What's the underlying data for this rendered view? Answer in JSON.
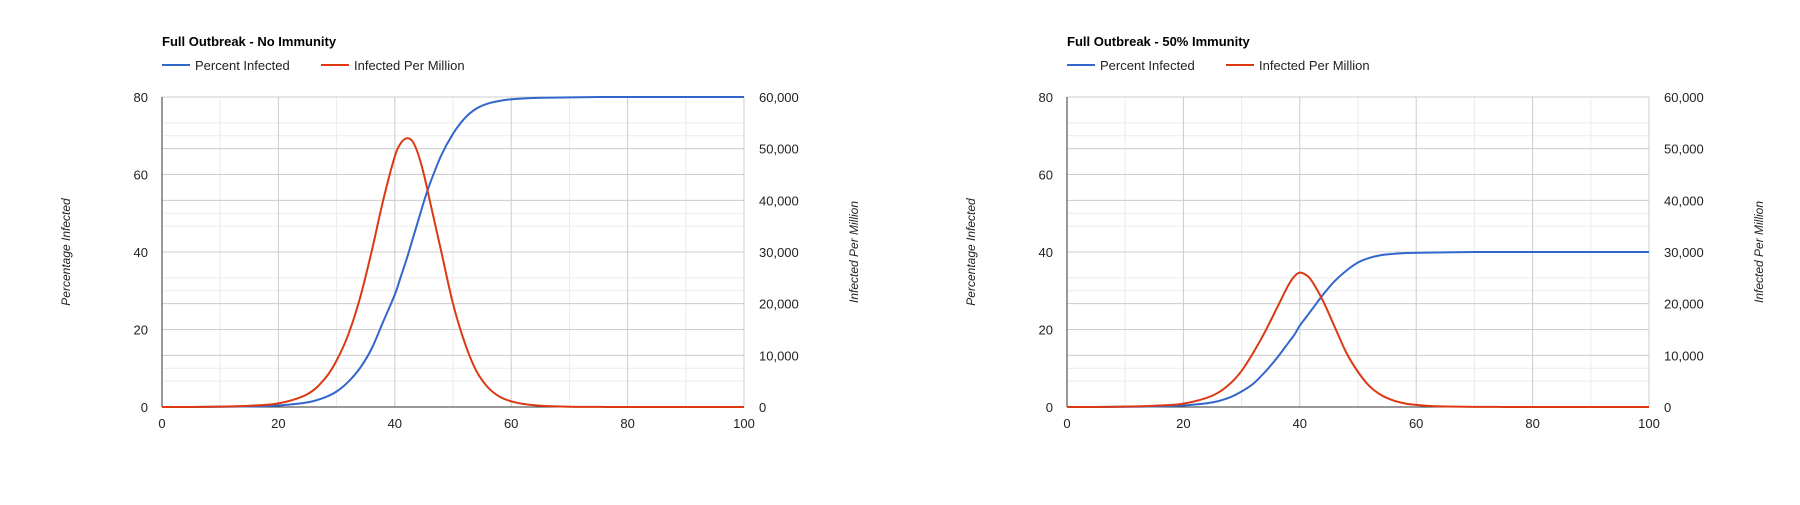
{
  "chart_data": [
    {
      "type": "line",
      "title": "Full Outbreak - No Immunity",
      "xlabel": "",
      "ylabel": "Percentage Infected",
      "y2label": "Infected Per Million",
      "xlim": [
        0,
        100
      ],
      "ylim": [
        0,
        80
      ],
      "y2lim": [
        0,
        60000
      ],
      "x_ticks": [
        "0",
        "20",
        "40",
        "60",
        "80",
        "100"
      ],
      "y_ticks": [
        "0",
        "20",
        "40",
        "60",
        "80"
      ],
      "y2_ticks": [
        "0",
        "10,000",
        "20,000",
        "30,000",
        "40,000",
        "50,000",
        "60,000"
      ],
      "grid": true,
      "legend_position": "top-left",
      "x": [
        0,
        5,
        10,
        15,
        20,
        25,
        28,
        30,
        32,
        34,
        36,
        38,
        40,
        41,
        42,
        43,
        44,
        45,
        46,
        48,
        50,
        52,
        54,
        56,
        58,
        60,
        62,
        65,
        70,
        75,
        80,
        90,
        100
      ],
      "series": [
        {
          "name": "Percent Infected",
          "axis": "left",
          "color": "#3366cc",
          "values": [
            0,
            0,
            0.05,
            0.15,
            0.4,
            1.2,
            2.5,
            4,
            6.5,
            10,
            15,
            22,
            29,
            33.5,
            38,
            43,
            48,
            53,
            57.5,
            65,
            70.5,
            74.5,
            77,
            78.3,
            79,
            79.4,
            79.6,
            79.8,
            79.9,
            80,
            80,
            80,
            80
          ]
        },
        {
          "name": "Infected Per Million",
          "axis": "right",
          "color": "#dc3912",
          "values": [
            0,
            0,
            80,
            250,
            700,
            2500,
            5500,
            9000,
            14000,
            21000,
            30000,
            40000,
            48500,
            51000,
            52000,
            51500,
            49000,
            45000,
            40000,
            30000,
            20000,
            12500,
            7000,
            3800,
            2000,
            1100,
            600,
            250,
            60,
            15,
            5,
            0,
            0
          ]
        }
      ]
    },
    {
      "type": "line",
      "title": "Full Outbreak - 50% Immunity",
      "xlabel": "",
      "ylabel": "Percentage Infected",
      "y2label": "Infected Per Million",
      "xlim": [
        0,
        100
      ],
      "ylim": [
        0,
        80
      ],
      "y2lim": [
        0,
        60000
      ],
      "x_ticks": [
        "0",
        "20",
        "40",
        "60",
        "80",
        "100"
      ],
      "y_ticks": [
        "0",
        "20",
        "40",
        "60",
        "80"
      ],
      "y2_ticks": [
        "0",
        "10,000",
        "20,000",
        "30,000",
        "40,000",
        "50,000",
        "60,000"
      ],
      "grid": true,
      "legend_position": "top-left",
      "x": [
        0,
        5,
        10,
        15,
        20,
        25,
        28,
        30,
        32,
        34,
        36,
        38,
        39,
        40,
        41,
        42,
        44,
        46,
        48,
        50,
        52,
        54,
        56,
        58,
        60,
        62,
        65,
        70,
        75,
        80,
        90,
        100
      ],
      "series": [
        {
          "name": "Percent Infected",
          "axis": "left",
          "color": "#3366cc",
          "values": [
            0,
            0,
            0.05,
            0.15,
            0.4,
            1.2,
            2.5,
            4,
            6,
            9,
            12.5,
            16.5,
            18.5,
            21,
            23,
            25,
            29,
            32.5,
            35.2,
            37.3,
            38.5,
            39.2,
            39.5,
            39.7,
            39.8,
            39.85,
            39.9,
            40,
            40,
            40,
            40,
            40
          ]
        },
        {
          "name": "Infected Per Million",
          "axis": "right",
          "color": "#dc3912",
          "values": [
            0,
            0,
            80,
            250,
            650,
            2200,
            4500,
            7000,
            10500,
            14500,
            19000,
            23500,
            25200,
            26000,
            25600,
            24500,
            20500,
            15500,
            10500,
            6800,
            4000,
            2300,
            1300,
            700,
            400,
            220,
            100,
            30,
            10,
            3,
            0,
            0
          ]
        }
      ]
    }
  ]
}
